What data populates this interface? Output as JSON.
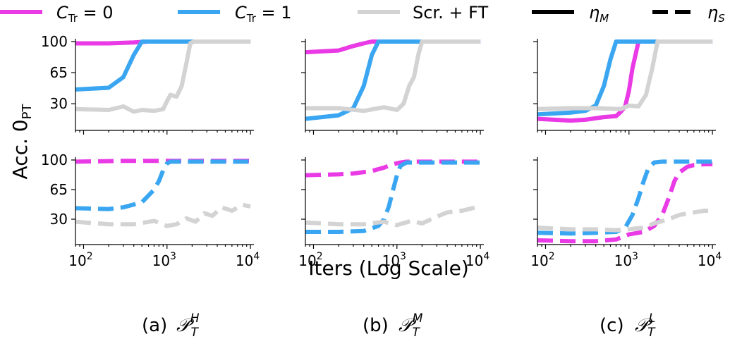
{
  "legend": {
    "items": [
      {
        "label": "C_Tr = 0",
        "kind": "color",
        "color": "#e93ae6"
      },
      {
        "label": "C_Tr = 1",
        "kind": "color",
        "color": "#3aa6f2"
      },
      {
        "label": "Scr. + FT",
        "kind": "color",
        "color": "#d3d3d3"
      },
      {
        "label": "η_M",
        "kind": "solid"
      },
      {
        "label": "η_S",
        "kind": "dashed"
      }
    ]
  },
  "axis_labels": {
    "y": "Acc. 0_PT",
    "x": "Iters (Log Scale)"
  },
  "captions": [
    "(a)",
    "(b)",
    "(c)"
  ],
  "caption_symbols": [
    {
      "main": "P",
      "sup": "H",
      "sub": "T"
    },
    {
      "main": "P",
      "sup": "M",
      "sub": "T"
    },
    {
      "main": "P",
      "sup": "L",
      "sub": "T"
    }
  ],
  "colors": {
    "c0": "#e93ae6",
    "c1": "#3aa6f2",
    "scr": "#d3d3d3"
  },
  "chart_data": {
    "type": "line",
    "x_scale": "log",
    "xlim": [
      80,
      11000
    ],
    "ylim": [
      0,
      100
    ],
    "yticks": [
      "30",
      "65",
      "100"
    ],
    "xticks": [
      {
        "value": 100,
        "base": "10",
        "exp": "2"
      },
      {
        "value": 1000,
        "base": "10",
        "exp": "3"
      },
      {
        "value": 10000,
        "base": "10",
        "exp": "4"
      }
    ],
    "panels": [
      {
        "caption": "(a)",
        "row": "top",
        "col": 0,
        "metric": "η_M",
        "show_ytick_labels": true,
        "series": [
          {
            "name": "C_Tr = 0",
            "color": "#e93ae6",
            "dash": false,
            "x": [
              80,
              200,
              400,
              600,
              1000,
              3000,
              10000
            ],
            "y": [
              98,
              98,
              99,
              100,
              100,
              100,
              100
            ]
          },
          {
            "name": "C_Tr = 1",
            "color": "#3aa6f2",
            "dash": false,
            "x": [
              80,
              200,
              300,
              400,
              500,
              600,
              1000,
              10000
            ],
            "y": [
              46,
              48,
              60,
              85,
              100,
              100,
              100,
              100
            ]
          },
          {
            "name": "Scr. + FT",
            "color": "#d3d3d3",
            "dash": false,
            "x": [
              80,
              200,
              300,
              400,
              500,
              700,
              900,
              1000,
              1100,
              1300,
              1500,
              1700,
              1900,
              2100,
              3000,
              10000
            ],
            "y": [
              24,
              23,
              27,
              21,
              23,
              22,
              24,
              33,
              40,
              38,
              50,
              75,
              98,
              100,
              100,
              100
            ]
          }
        ]
      },
      {
        "caption": "(b)",
        "row": "top",
        "col": 1,
        "metric": "η_M",
        "show_ytick_labels": false,
        "series": [
          {
            "name": "C_Tr = 0",
            "color": "#e93ae6",
            "dash": false,
            "x": [
              80,
              200,
              300,
              400,
              500,
              700,
              10000
            ],
            "y": [
              88,
              90,
              95,
              98,
              100,
              100,
              100
            ]
          },
          {
            "name": "C_Tr = 1",
            "color": "#3aa6f2",
            "dash": false,
            "x": [
              80,
              200,
              300,
              400,
              500,
              600,
              700,
              10000
            ],
            "y": [
              13,
              17,
              25,
              50,
              85,
              100,
              100,
              100
            ]
          },
          {
            "name": "Scr. + FT",
            "color": "#d3d3d3",
            "dash": false,
            "x": [
              80,
              200,
              400,
              700,
              1000,
              1200,
              1400,
              1600,
              1800,
              2000,
              3000,
              10000
            ],
            "y": [
              25,
              25,
              22,
              26,
              23,
              30,
              50,
              60,
              85,
              100,
              100,
              100
            ]
          }
        ]
      },
      {
        "caption": "(c)",
        "row": "top",
        "col": 2,
        "metric": "η_M",
        "show_ytick_labels": false,
        "series": [
          {
            "name": "C_Tr = 0",
            "color": "#e93ae6",
            "dash": false,
            "x": [
              80,
              200,
              300,
              500,
              700,
              800,
              900,
              1000,
              1100,
              1300,
              1500,
              10000
            ],
            "y": [
              13,
              11,
              12,
              15,
              16,
              21,
              27,
              45,
              70,
              100,
              100,
              100
            ]
          },
          {
            "name": "C_Tr = 1",
            "color": "#3aa6f2",
            "dash": false,
            "x": [
              80,
              200,
              300,
              400,
              500,
              600,
              700,
              800,
              1000,
              10000
            ],
            "y": [
              18,
              20,
              22,
              28,
              50,
              80,
              100,
              100,
              100,
              100
            ]
          },
          {
            "name": "Scr. + FT",
            "color": "#d3d3d3",
            "dash": false,
            "x": [
              80,
              200,
              400,
              800,
              1000,
              1300,
              1600,
              1900,
              2200,
              3000,
              10000
            ],
            "y": [
              24,
              25,
              25,
              24,
              28,
              27,
              40,
              70,
              100,
              100,
              100
            ]
          }
        ]
      },
      {
        "caption": "(a)",
        "row": "bottom",
        "col": 0,
        "metric": "η_S",
        "show_ytick_labels": true,
        "series": [
          {
            "name": "C_Tr = 0",
            "color": "#e93ae6",
            "dash": true,
            "x": [
              80,
              300,
              1000,
              3000,
              10000
            ],
            "y": [
              98,
              99,
              99,
              99,
              99
            ]
          },
          {
            "name": "C_Tr = 1",
            "color": "#3aa6f2",
            "dash": true,
            "x": [
              80,
              200,
              300,
              500,
              600,
              700,
              800,
              900,
              1000,
              1100,
              3000,
              10000
            ],
            "y": [
              43,
              42,
              44,
              50,
              58,
              65,
              75,
              88,
              96,
              98,
              98,
              98
            ]
          },
          {
            "name": "Scr. + FT",
            "color": "#d3d3d3",
            "dash": true,
            "x": [
              80,
              200,
              400,
              700,
              1000,
              1300,
              1700,
              2200,
              2800,
              3500,
              4500,
              6000,
              8000,
              10000
            ],
            "y": [
              27,
              24,
              24,
              28,
              22,
              24,
              31,
              27,
              37,
              34,
              44,
              40,
              47,
              45
            ]
          }
        ]
      },
      {
        "caption": "(b)",
        "row": "bottom",
        "col": 1,
        "metric": "η_S",
        "show_ytick_labels": false,
        "series": [
          {
            "name": "C_Tr = 0",
            "color": "#e93ae6",
            "dash": true,
            "x": [
              80,
              200,
              300,
              500,
              700,
              900,
              1100,
              1300,
              2000,
              10000
            ],
            "y": [
              82,
              83,
              84,
              87,
              91,
              95,
              97,
              98,
              98,
              98
            ]
          },
          {
            "name": "C_Tr = 1",
            "color": "#3aa6f2",
            "dash": true,
            "x": [
              80,
              200,
              400,
              600,
              700,
              800,
              900,
              1000,
              1100,
              1300,
              1600,
              10000
            ],
            "y": [
              15,
              15,
              16,
              22,
              30,
              45,
              65,
              82,
              93,
              97,
              97,
              97
            ]
          },
          {
            "name": "Scr. + FT",
            "color": "#d3d3d3",
            "dash": true,
            "x": [
              80,
              200,
              400,
              700,
              1000,
              1500,
              2000,
              3000,
              4000,
              6000,
              8000,
              10000
            ],
            "y": [
              26,
              24,
              24,
              27,
              23,
              28,
              25,
              33,
              38,
              40,
              43,
              45
            ]
          }
        ]
      },
      {
        "caption": "(c)",
        "row": "bottom",
        "col": 2,
        "metric": "η_S",
        "show_ytick_labels": false,
        "series": [
          {
            "name": "C_Tr = 0",
            "color": "#e93ae6",
            "dash": true,
            "x": [
              80,
              200,
              400,
              700,
              1000,
              1500,
              2000,
              2500,
              3000,
              3500,
              4000,
              5000,
              6000,
              8000,
              10000
            ],
            "y": [
              5,
              4,
              4,
              6,
              12,
              15,
              22,
              35,
              55,
              75,
              85,
              92,
              94,
              95,
              95
            ]
          },
          {
            "name": "C_Tr = 1",
            "color": "#3aa6f2",
            "dash": true,
            "x": [
              80,
              200,
              400,
              700,
              900,
              1100,
              1300,
              1500,
              1700,
              2000,
              2500,
              3000,
              10000
            ],
            "y": [
              14,
              13,
              14,
              15,
              20,
              35,
              55,
              75,
              90,
              97,
              98,
              98,
              98
            ]
          },
          {
            "name": "Scr. + FT",
            "color": "#d3d3d3",
            "dash": true,
            "x": [
              80,
              200,
              400,
              700,
              1000,
              1500,
              2000,
              3000,
              4000,
              6000,
              8000,
              10000
            ],
            "y": [
              20,
              18,
              18,
              17,
              18,
              20,
              25,
              30,
              35,
              38,
              40,
              40
            ]
          }
        ]
      }
    ]
  }
}
